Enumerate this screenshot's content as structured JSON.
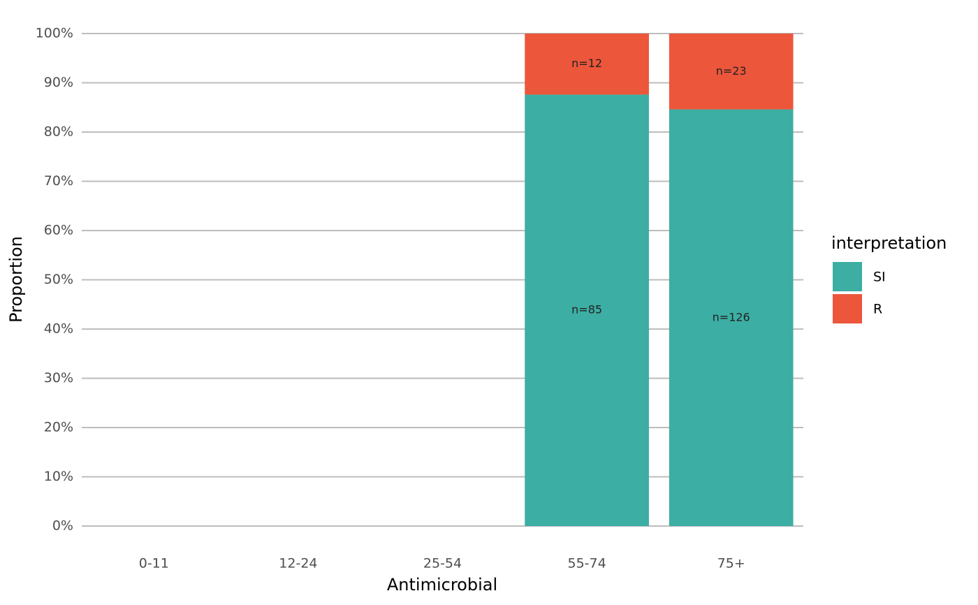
{
  "chart_data": {
    "type": "stacked_bar",
    "x_label": "Antimicrobial",
    "y_label": "Proportion",
    "legend_title": "interpretation",
    "legend": "right",
    "grid": true,
    "categories": [
      "0-11",
      "12-24",
      "25-54",
      "55-74",
      "75+"
    ],
    "series": [
      {
        "name": "SI",
        "color": "#3caea3",
        "values": [
          null,
          null,
          null,
          87.6,
          84.6
        ],
        "labels": [
          null,
          null,
          null,
          {
            "value": 85,
            "label": "n=85"
          },
          {
            "value": 126,
            "label": "n=126"
          }
        ]
      },
      {
        "name": "R",
        "color": "#ec563b",
        "values": [
          null,
          null,
          null,
          12.4,
          15.4
        ],
        "labels": [
          null,
          null,
          null,
          {
            "value": 12,
            "label": "n=12"
          },
          {
            "value": 23,
            "label": "n=23"
          }
        ]
      }
    ],
    "ylim": [
      0,
      100
    ],
    "yticks": [
      {
        "value": 0,
        "label": "0%"
      },
      {
        "value": 10,
        "label": "10%"
      },
      {
        "value": 20,
        "label": "20%"
      },
      {
        "value": 30,
        "label": "30%"
      },
      {
        "value": 40,
        "label": "40%"
      },
      {
        "value": 50,
        "label": "50%"
      },
      {
        "value": 60,
        "label": "60%"
      },
      {
        "value": 70,
        "label": "70%"
      },
      {
        "value": 80,
        "label": "80%"
      },
      {
        "value": 90,
        "label": "90%"
      },
      {
        "value": 100,
        "label": "100%"
      }
    ]
  }
}
